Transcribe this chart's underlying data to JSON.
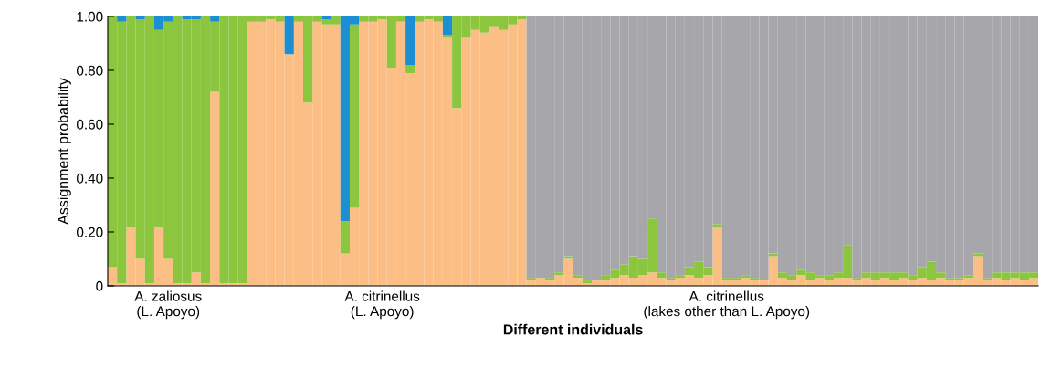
{
  "chart_data": {
    "type": "bar",
    "stacked": true,
    "xlabel": "Different individuals",
    "ylabel": "Assignment probability",
    "categories": [
      null,
      null,
      null,
      null,
      null,
      null,
      "A. zaliosus\n(L. Apoyo)",
      null,
      null,
      null,
      null,
      null,
      null,
      null,
      null,
      null,
      null,
      null,
      null,
      null,
      null,
      null,
      null,
      null,
      null,
      null,
      null,
      null,
      null,
      "A. citrinellus\n(L. Apoyo)",
      null,
      null,
      null,
      null,
      null,
      null,
      null,
      null,
      null,
      null,
      null,
      null,
      null,
      null,
      null,
      null,
      null,
      null,
      null,
      null,
      null,
      null,
      null,
      null,
      null,
      null,
      null,
      null,
      null,
      null,
      null,
      null,
      null,
      null,
      null,
      null,
      "A. citrinellus\n(lakes other than L. Apoyo)",
      null,
      null,
      null,
      null,
      null,
      null,
      null,
      null,
      null,
      null,
      null,
      null,
      null,
      null,
      null,
      null,
      null,
      null,
      null,
      null,
      null,
      null,
      null,
      null,
      null,
      null,
      null,
      null,
      null,
      null,
      null,
      null,
      null
    ],
    "ylim": [
      0,
      1
    ],
    "yticks": [
      0,
      {
        "value": 0.2,
        "label": "0.20"
      },
      {
        "value": 0.4,
        "label": "0.40"
      },
      {
        "value": 0.6,
        "label": "0.60"
      },
      {
        "value": 0.8,
        "label": "0.80"
      },
      {
        "value": 1.0,
        "label": "1.00"
      }
    ],
    "series": [
      {
        "color": "#fbbf85",
        "values": [
          0.07,
          0.01,
          0.22,
          0.1,
          0.01,
          0.22,
          0.1,
          0.01,
          0.01,
          0.05,
          0.01,
          0.72,
          0.01,
          0.01,
          0.01,
          0.98,
          0.98,
          0.99,
          0.98,
          0.86,
          0.98,
          0.68,
          0.98,
          0.97,
          0.97,
          0.12,
          0.29,
          0.98,
          0.98,
          0.99,
          0.81,
          0.98,
          0.79,
          0.98,
          0.99,
          0.98,
          0.92,
          0.66,
          0.92,
          0.95,
          0.94,
          0.96,
          0.95,
          0.97,
          0.99,
          0.02,
          0.03,
          0.02,
          0.04,
          0.1,
          0.03,
          0.01,
          0.02,
          0.02,
          0.03,
          0.04,
          0.03,
          0.04,
          0.05,
          0.03,
          0.02,
          0.03,
          0.04,
          0.03,
          0.04,
          0.22,
          0.02,
          0.02,
          0.03,
          0.02,
          0.02,
          0.11,
          0.03,
          0.02,
          0.04,
          0.02,
          0.03,
          0.02,
          0.03,
          0.03,
          0.02,
          0.03,
          0.02,
          0.03,
          0.02,
          0.03,
          0.02,
          0.03,
          0.02,
          0.03,
          0.02,
          0.02,
          0.03,
          0.11,
          0.02,
          0.03,
          0.02,
          0.03,
          0.02,
          0.03
        ]
      },
      {
        "color": "#8cc63f",
        "values": [
          0.93,
          0.97,
          0.78,
          0.89,
          0.99,
          0.73,
          0.88,
          0.99,
          0.98,
          0.94,
          0.99,
          0.26,
          0.99,
          0.99,
          0.99,
          0.02,
          0.02,
          0.01,
          0.02,
          0,
          0.02,
          0.32,
          0.02,
          0.02,
          0.03,
          0.12,
          0.68,
          0.02,
          0.02,
          0.01,
          0.19,
          0.02,
          0.03,
          0.02,
          0.01,
          0.02,
          0.01,
          0.34,
          0.08,
          0.05,
          0.06,
          0.04,
          0.05,
          0.03,
          0.01,
          0.01,
          0,
          0.01,
          0.01,
          0.01,
          0.01,
          0.01,
          0,
          0.02,
          0.03,
          0.04,
          0.08,
          0.06,
          0.2,
          0.02,
          0.01,
          0.01,
          0.03,
          0.06,
          0.03,
          0.01,
          0.01,
          0.01,
          0.01,
          0.01,
          0,
          0.01,
          0.02,
          0.02,
          0.02,
          0.03,
          0.01,
          0.02,
          0.02,
          0.12,
          0.01,
          0.02,
          0.03,
          0.02,
          0.03,
          0.02,
          0.02,
          0.04,
          0.07,
          0.02,
          0.01,
          0.01,
          0.01,
          0.01,
          0.01,
          0.02,
          0.03,
          0.02,
          0.03,
          0.02
        ]
      },
      {
        "color": "#1b8fd1",
        "values": [
          0,
          0.02,
          0,
          0.01,
          0,
          0.05,
          0.02,
          0,
          0.01,
          0.01,
          0,
          0.02,
          0,
          0,
          0,
          0,
          0,
          0,
          0,
          0.14,
          0,
          0,
          0,
          0.01,
          0,
          0.76,
          0.03,
          0,
          0,
          0,
          0,
          0,
          0.18,
          0,
          0,
          0,
          0.07,
          0,
          0,
          0,
          0,
          0,
          0,
          0,
          0,
          0,
          0,
          0,
          0,
          0,
          0,
          0,
          0,
          0,
          0,
          0,
          0,
          0,
          0,
          0,
          0,
          0,
          0,
          0,
          0,
          0,
          0,
          0,
          0,
          0,
          0,
          0,
          0,
          0,
          0,
          0,
          0,
          0,
          0,
          0,
          0,
          0,
          0,
          0,
          0,
          0,
          0,
          0,
          0,
          0,
          0,
          0,
          0,
          0,
          0,
          0,
          0,
          0,
          0,
          0
        ]
      },
      {
        "color": "#a7a7ab",
        "values": [
          0,
          0,
          0,
          0,
          0,
          0,
          0,
          0,
          0,
          0,
          0,
          0,
          0,
          0,
          0,
          0,
          0,
          0,
          0,
          0,
          0,
          0,
          0,
          0,
          0,
          0,
          0,
          0,
          0,
          0,
          0,
          0,
          0,
          0,
          0,
          0,
          0,
          0,
          0,
          0,
          0,
          0,
          0,
          0,
          0,
          0.97,
          0.97,
          0.97,
          0.95,
          0.89,
          0.96,
          0.98,
          0.98,
          0.96,
          0.94,
          0.92,
          0.89,
          0.9,
          0.75,
          0.95,
          0.97,
          0.96,
          0.93,
          0.91,
          0.93,
          0.77,
          0.97,
          0.97,
          0.96,
          0.97,
          0.98,
          0.88,
          0.95,
          0.96,
          0.94,
          0.95,
          0.96,
          0.96,
          0.95,
          0.85,
          0.97,
          0.95,
          0.95,
          0.95,
          0.95,
          0.95,
          0.96,
          0.93,
          0.91,
          0.95,
          0.97,
          0.97,
          0.96,
          0.88,
          0.97,
          0.95,
          0.95,
          0.95,
          0.95,
          0.95
        ]
      }
    ]
  }
}
